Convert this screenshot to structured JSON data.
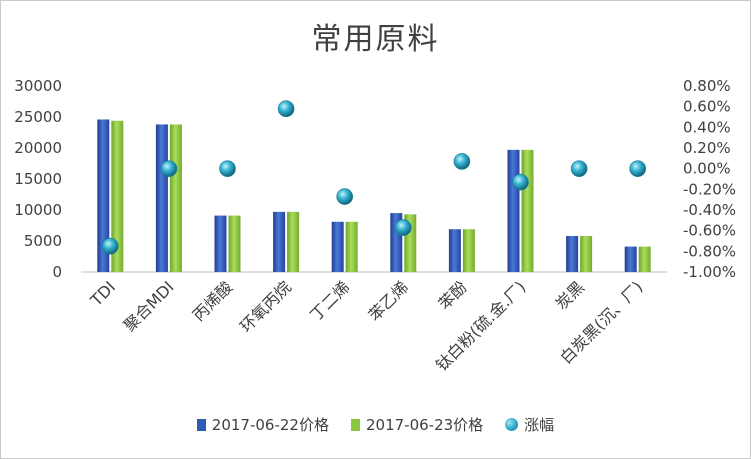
{
  "chart_data": {
    "type": "bar",
    "title": "常用原料",
    "categories": [
      "TDI",
      "聚合MDI",
      "丙烯酸",
      "环氧丙烷",
      "丁二烯",
      "苯乙烯",
      "苯酚",
      "钛白粉(硫.金.厂)",
      "炭黑",
      "白炭黑(沉、厂)"
    ],
    "series": [
      {
        "name": "2017-06-22价格",
        "kind": "bar",
        "axis": "left",
        "color": "#2f5bb7",
        "values": [
          24600,
          23800,
          9100,
          9700,
          8100,
          9500,
          6900,
          19700,
          5800,
          4100
        ]
      },
      {
        "name": "2017-06-23价格",
        "kind": "bar",
        "axis": "left",
        "color": "#8cc63f",
        "values": [
          24400,
          23800,
          9100,
          9700,
          8100,
          9300,
          6900,
          19700,
          5800,
          4100
        ]
      },
      {
        "name": "涨幅",
        "kind": "scatter",
        "axis": "right",
        "color": "#2aa8c8",
        "values": [
          -0.0075,
          0.0,
          0.0,
          0.0058,
          -0.0027,
          -0.0057,
          0.0007,
          -0.0013,
          0.0,
          0.0
        ]
      }
    ],
    "y_left": {
      "min": 0,
      "max": 30000,
      "ticks": [
        "0",
        "5000",
        "10000",
        "15000",
        "20000",
        "25000",
        "30000"
      ]
    },
    "y_right": {
      "min": -0.01,
      "max": 0.008,
      "ticks": [
        "-1.00%",
        "-0.80%",
        "-0.60%",
        "-0.40%",
        "-0.20%",
        "0.00%",
        "0.20%",
        "0.40%",
        "0.60%",
        "0.80%"
      ]
    },
    "grid": false,
    "legend_position": "bottom"
  }
}
